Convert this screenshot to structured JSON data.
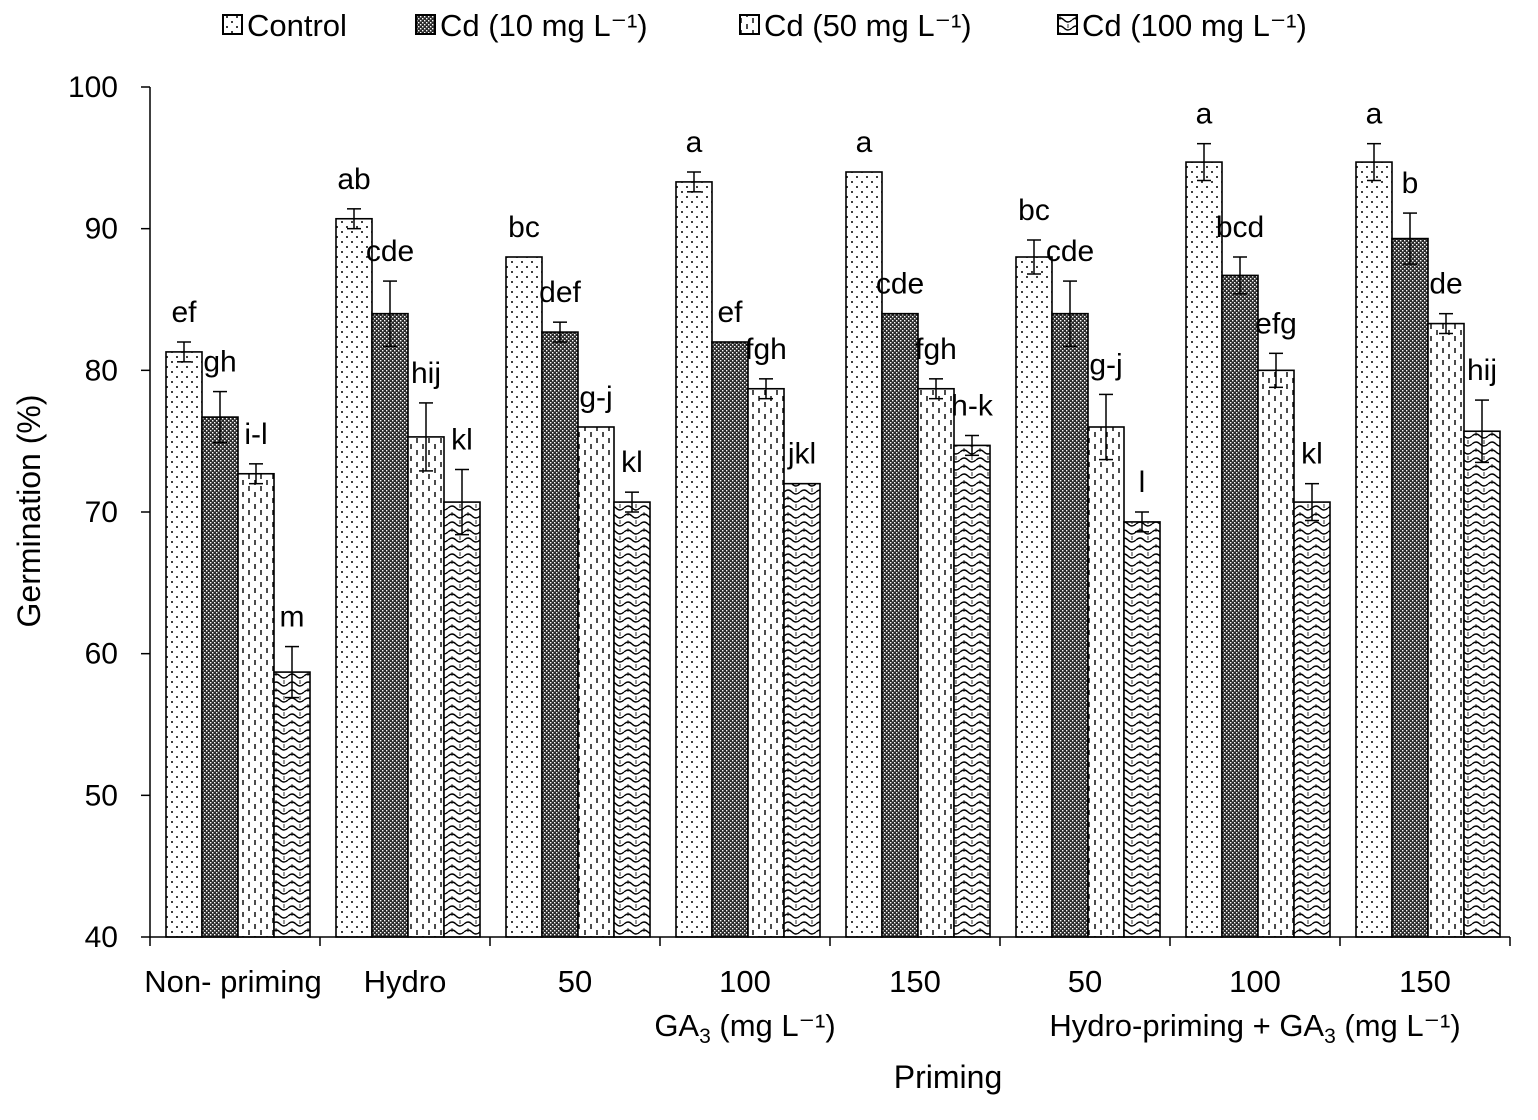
{
  "chart_data": {
    "type": "bar",
    "ylabel": "Germination (%)",
    "xlabel": "Priming",
    "ylim": [
      40,
      100
    ],
    "yticks": [
      40,
      50,
      60,
      70,
      80,
      90,
      100
    ],
    "grid": false,
    "legend_position": "top",
    "categories": [
      "Non- priming",
      "Hydro",
      "50",
      "100",
      "150",
      "50",
      "100",
      "150"
    ],
    "category_groups": [
      {
        "label": "GA3 (mg L⁻¹)",
        "label_main": "GA",
        "label_sub": "3",
        "label_rest": " (mg L⁻¹)",
        "categories": [
          2,
          3,
          4
        ]
      },
      {
        "label": "Hydro-priming + GA3 (mg L⁻¹)",
        "label_main": "Hydro-priming + GA",
        "label_sub": "3",
        "label_rest": " (mg L⁻¹)",
        "categories": [
          5,
          6,
          7
        ]
      }
    ],
    "series": [
      {
        "name": "Control",
        "pattern": "dots",
        "values": [
          81.3,
          90.7,
          88.0,
          93.3,
          94.0,
          88.0,
          94.7,
          94.7
        ],
        "errors": [
          0.7,
          0.7,
          0.0,
          0.7,
          0.0,
          1.2,
          1.3,
          1.3
        ],
        "letters": [
          "ef",
          "ab",
          "bc",
          "a",
          "a",
          "bc",
          "a",
          "a"
        ]
      },
      {
        "name": "Cd (10 mg L⁻¹)",
        "pattern": "crosshatch",
        "values": [
          76.7,
          84.0,
          82.7,
          82.0,
          84.0,
          84.0,
          86.7,
          89.3
        ],
        "errors": [
          1.8,
          2.3,
          0.7,
          0.0,
          0.0,
          2.3,
          1.3,
          1.8
        ],
        "letters": [
          "gh",
          "cde",
          "def",
          "ef",
          "cde",
          "cde",
          "bcd",
          "b"
        ]
      },
      {
        "name": "Cd (50 mg L⁻¹)",
        "pattern": "dashes",
        "values": [
          72.7,
          75.3,
          76.0,
          78.7,
          78.7,
          76.0,
          80.0,
          83.3
        ],
        "errors": [
          0.7,
          2.4,
          0.0,
          0.7,
          0.7,
          2.3,
          1.2,
          0.7
        ],
        "letters": [
          "i-l",
          "hij",
          "g-j",
          "fgh",
          "fgh",
          "g-j",
          "efg",
          "de"
        ]
      },
      {
        "name": "Cd (100 mg L⁻¹)",
        "pattern": "waves",
        "values": [
          58.7,
          70.7,
          70.7,
          72.0,
          74.7,
          69.3,
          70.7,
          75.7
        ],
        "errors": [
          1.8,
          2.3,
          0.7,
          0.0,
          0.7,
          0.7,
          1.3,
          2.2
        ],
        "letters": [
          "m",
          "kl",
          "kl",
          "jkl",
          "h-k",
          "l",
          "kl",
          "hij"
        ]
      }
    ]
  }
}
